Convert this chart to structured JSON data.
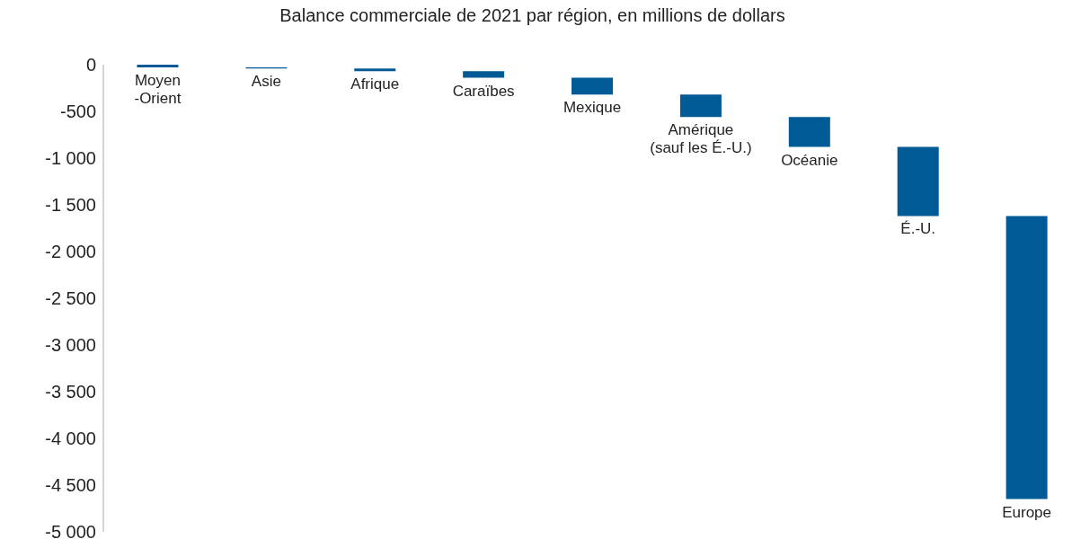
{
  "chart_data": {
    "type": "bar",
    "title": "Balance commerciale de 2021 par région, en millions de dollars",
    "categories": [
      "Moyen-Orient",
      "Asie",
      "Afrique",
      "Caraïbes",
      "Mexique",
      "Amérique (sauf les É.-U.)",
      "Océanie",
      "É.-U.",
      "Europe"
    ],
    "values": [
      -30,
      -10,
      -30,
      -70,
      -180,
      -240,
      -320,
      -740,
      -3030
    ],
    "base": [
      0,
      -30,
      -40,
      -70,
      -140,
      -320,
      -560,
      -880,
      -1620
    ],
    "color": "#005a96",
    "ylim": [
      -5000,
      0
    ],
    "yticks": [
      {
        "value": 0,
        "label": "0"
      },
      {
        "value": -500,
        "label": "-500"
      },
      {
        "value": -1000,
        "label": "-1 000"
      },
      {
        "value": -1500,
        "label": "-1 500"
      },
      {
        "value": -2000,
        "label": "-2 000"
      },
      {
        "value": -2500,
        "label": "-2 500"
      },
      {
        "value": -3000,
        "label": "-3 000"
      },
      {
        "value": -3500,
        "label": "-3 500"
      },
      {
        "value": -4000,
        "label": "-4 000"
      },
      {
        "value": -4500,
        "label": "-4 500"
      },
      {
        "value": -5000,
        "label": "-5 000"
      }
    ],
    "grid": false,
    "tick_labels": "y"
  }
}
